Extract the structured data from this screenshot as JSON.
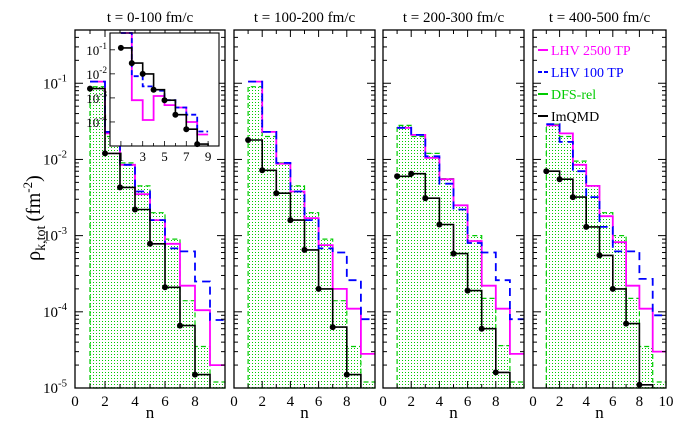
{
  "chart_data": {
    "type": "step",
    "y_label": "ρ",
    "y_label_sub": "k,tot",
    "y_label_unit": "(fm",
    "y_label_sup": "-2",
    "y_label_close": ")",
    "x_label": "n",
    "ylim": [
      1e-05,
      0.5
    ],
    "y_scale": "log",
    "y_ticks": [
      {
        "v": 1e-05,
        "b": "10",
        "e": "-5"
      },
      {
        "v": 0.0001,
        "b": "10",
        "e": "-4"
      },
      {
        "v": 0.001,
        "b": "10",
        "e": "-3"
      },
      {
        "v": 0.01,
        "b": "10",
        "e": "-2"
      },
      {
        "v": 0.1,
        "b": "10",
        "e": "-1"
      }
    ],
    "legend": [
      {
        "name": "LHV 2500 TP",
        "color": "#ff00ff"
      },
      {
        "name": "LHV 100 TP",
        "color": "#0000ff"
      },
      {
        "name": "DFS-rel",
        "color": "#00cc00"
      },
      {
        "name": "ImQMD",
        "color": "#000000"
      }
    ],
    "panels": [
      {
        "title": "t = 0-100 fm/c",
        "xlim": [
          0,
          10
        ],
        "x_ticks": [
          "0",
          "2",
          "4",
          "6",
          "8"
        ],
        "magenta": [
          0.105,
          0.022,
          0.0085,
          0.0035,
          0.0016,
          0.00078,
          0.00022,
          0.000105,
          2e-05
        ],
        "blue": [
          0.105,
          0.023,
          0.0085,
          0.0038,
          0.0016,
          0.00068,
          0.00062,
          0.00025,
          7.8e-05
        ],
        "green": [
          0.09,
          0.02,
          0.009,
          0.0045,
          0.002,
          0.0009,
          0.00014,
          3.5e-05,
          1.2e-05
        ],
        "black": [
          0.085,
          0.012,
          0.0043,
          0.0022,
          0.00078,
          0.00021,
          6.6e-05,
          1.5e-05
        ],
        "inset": {
          "xlim": [
            0,
            10
          ],
          "ylim": [
            1e-05,
            0.5
          ],
          "x_ticks": [
            "1",
            "3",
            "5",
            "7",
            "9"
          ],
          "y_ticks": [
            {
              "v": 0.1,
              "b": "10",
              "e": "-1"
            },
            {
              "v": 0.01,
              "b": "10",
              "e": "-2"
            },
            {
              "v": 0.001,
              "b": "10",
              "e": "-3"
            },
            {
              "v": 0.0001,
              "b": "10",
              "e": "-4"
            }
          ],
          "magenta": [
            0.5,
            0.0008,
            0.00012,
            0.0012,
            0.0005,
            0.0004,
            0.0001,
            3e-05
          ],
          "blue": [
            0.5,
            0.008,
            0.003,
            0.002,
            0.0008,
            0.0004,
            0.0002,
            4e-05
          ],
          "black": [
            0.12,
            0.028,
            0.01,
            0.0022,
            0.0008,
            0.0002,
            5e-05,
            1.2e-05
          ]
        }
      },
      {
        "title": "t = 100-200 fm/c",
        "xlim": [
          0,
          10
        ],
        "x_ticks": [
          "0",
          "2",
          "4",
          "6",
          "8"
        ],
        "magenta": [
          0.105,
          0.023,
          0.0088,
          0.0038,
          0.0017,
          0.00075,
          0.0002,
          0.00011,
          2.8e-05
        ],
        "blue": [
          0.105,
          0.023,
          0.009,
          0.0038,
          0.0016,
          0.00068,
          0.0006,
          0.00026,
          8e-05
        ],
        "green": [
          0.09,
          0.02,
          0.009,
          0.0045,
          0.002,
          0.0009,
          0.00014,
          3.5e-05,
          1.2e-05
        ],
        "black": [
          0.018,
          0.0072,
          0.0036,
          0.0016,
          0.00065,
          0.0002,
          6.3e-05,
          1.5e-05
        ]
      },
      {
        "title": "t = 200-300 fm/c",
        "xlim": [
          0,
          10
        ],
        "x_ticks": [
          "0",
          "2",
          "4",
          "6",
          "8"
        ],
        "magenta": [
          0.026,
          0.021,
          0.0105,
          0.0055,
          0.0025,
          0.00085,
          0.00022,
          0.00011,
          2.8e-05
        ],
        "blue": [
          0.026,
          0.021,
          0.011,
          0.0048,
          0.0022,
          0.0008,
          0.0006,
          0.00026,
          8e-05
        ],
        "green": [
          0.028,
          0.02,
          0.012,
          0.0056,
          0.0025,
          0.001,
          0.00015,
          3.6e-05,
          1.2e-05
        ],
        "black": [
          0.006,
          0.0065,
          0.0031,
          0.0014,
          0.00058,
          0.00019,
          6e-05,
          1.6e-05
        ]
      },
      {
        "title": "t = 400-500 fm/c",
        "xlim": [
          0,
          10
        ],
        "x_ticks": [
          "0",
          "2",
          "4",
          "6",
          "8",
          "10"
        ],
        "magenta": [
          0.028,
          0.022,
          0.0085,
          0.0045,
          0.0018,
          0.00082,
          0.00022,
          0.00011,
          3e-05
        ],
        "blue": [
          0.029,
          0.017,
          0.007,
          0.0032,
          0.0013,
          0.00062,
          0.00062,
          0.00027,
          9e-05
        ],
        "green": [
          0.029,
          0.02,
          0.0095,
          0.0045,
          0.002,
          0.001,
          0.00015,
          3.5e-05,
          1.2e-05
        ],
        "black": [
          0.007,
          0.0055,
          0.0032,
          0.0013,
          0.00055,
          0.0002,
          7e-05,
          1.1e-05
        ]
      }
    ]
  }
}
